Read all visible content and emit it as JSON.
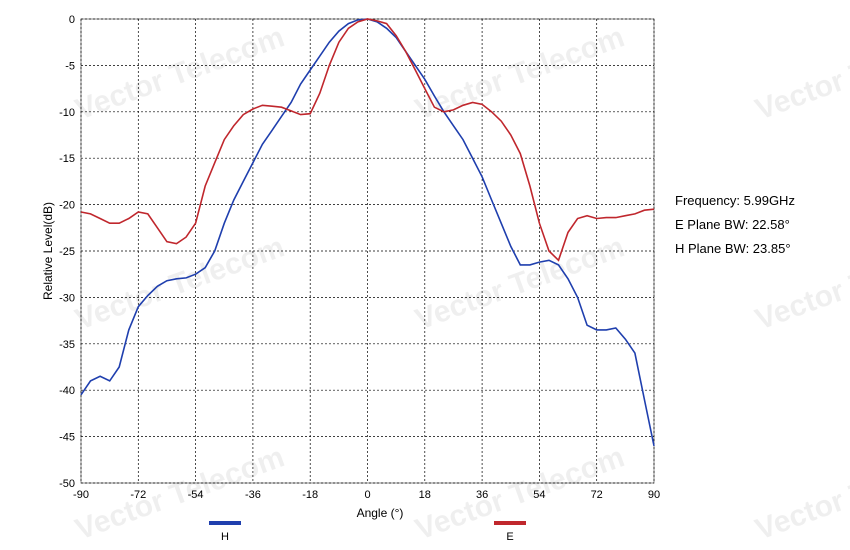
{
  "chart_data": {
    "type": "line",
    "xlabel": "Angle (°)",
    "ylabel": "Relative Level(dB)",
    "x": [
      -90,
      -87,
      -84,
      -81,
      -78,
      -75,
      -72,
      -69,
      -66,
      -63,
      -60,
      -57,
      -54,
      -51,
      -48,
      -45,
      -42,
      -39,
      -36,
      -33,
      -30,
      -27,
      -24,
      -21,
      -18,
      -15,
      -12,
      -9,
      -6,
      -3,
      0,
      3,
      6,
      9,
      12,
      15,
      18,
      21,
      24,
      27,
      30,
      33,
      36,
      39,
      42,
      45,
      48,
      51,
      54,
      57,
      60,
      63,
      66,
      69,
      72,
      75,
      78,
      81,
      84,
      87,
      90
    ],
    "series": [
      {
        "name": "H",
        "color": "#1f3fae",
        "values": [
          -40.5,
          -39,
          -38.5,
          -39,
          -37.5,
          -33.5,
          -31,
          -29.8,
          -28.8,
          -28.2,
          -28,
          -27.9,
          -27.5,
          -26.8,
          -25,
          -22,
          -19.5,
          -17.5,
          -15.5,
          -13.5,
          -12,
          -10.5,
          -9,
          -7,
          -5.5,
          -4,
          -2.5,
          -1.3,
          -0.5,
          -0.1,
          0,
          -0.3,
          -1,
          -2,
          -3.5,
          -5,
          -6.5,
          -8.3,
          -10,
          -11.5,
          -13,
          -15,
          -17,
          -19.5,
          -22,
          -24.5,
          -26.5,
          -26.5,
          -26.2,
          -26,
          -26.5,
          -28,
          -30,
          -33,
          -33.5,
          -33.5,
          -33.3,
          -34.5,
          -36,
          -41,
          -46
        ]
      },
      {
        "name": "E",
        "color": "#c0272d",
        "values": [
          -20.8,
          -21,
          -21.5,
          -22,
          -22,
          -21.5,
          -20.8,
          -21,
          -22.5,
          -24,
          -24.2,
          -23.5,
          -22,
          -18,
          -15.5,
          -13,
          -11.5,
          -10.3,
          -9.7,
          -9.3,
          -9.4,
          -9.5,
          -9.9,
          -10.3,
          -10.2,
          -8,
          -5,
          -2.5,
          -1,
          -0.3,
          0,
          -0.2,
          -0.5,
          -1.8,
          -3.5,
          -5.5,
          -7.5,
          -9.5,
          -10,
          -9.8,
          -9.3,
          -9,
          -9.2,
          -10,
          -11,
          -12.5,
          -14.5,
          -18,
          -22,
          -25,
          -26,
          -23,
          -21.5,
          -21.2,
          -21.5,
          -21.4,
          -21.4,
          -21.2,
          -21,
          -20.6,
          -20.5
        ]
      }
    ],
    "xlim": [
      -90,
      90
    ],
    "xticks": [
      -90,
      -72,
      -54,
      -36,
      -18,
      0,
      18,
      36,
      54,
      72,
      90
    ],
    "ylim": [
      -50,
      0
    ],
    "yticks": [
      0,
      -5,
      -10,
      -15,
      -20,
      -25,
      -30,
      -35,
      -40,
      -45,
      -50
    ],
    "grid": true,
    "annotations": [
      "Frequency: 5.99GHz",
      "E Plane BW: 22.58°",
      "H Plane BW: 23.85°"
    ],
    "watermark": "Vector Telecom"
  }
}
